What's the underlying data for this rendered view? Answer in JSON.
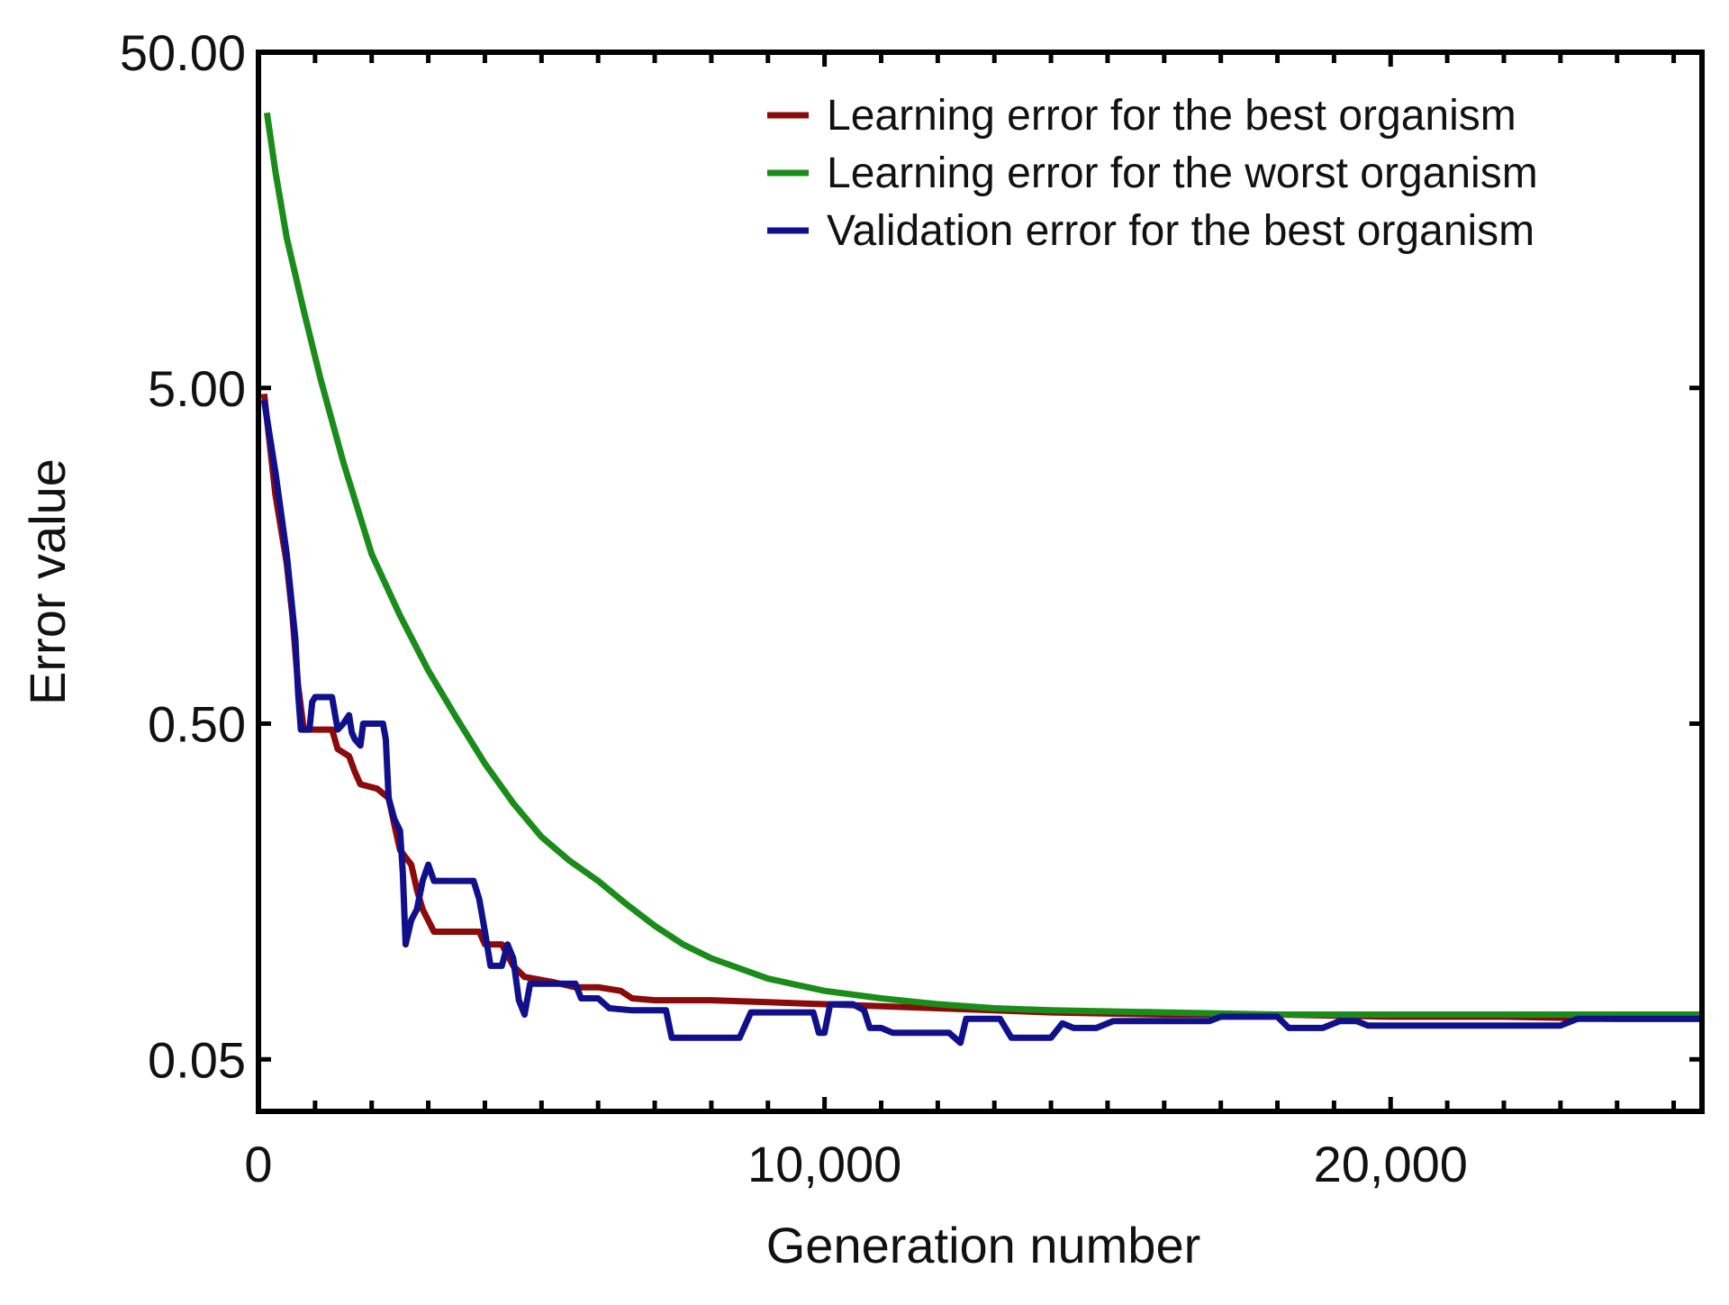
{
  "chart_data": {
    "type": "line",
    "xlabel": "Generation number",
    "ylabel": "Error value",
    "xlim": [
      0,
      25500
    ],
    "ylim": [
      0.035,
      50
    ],
    "y_scale": "log",
    "x_ticks": [
      0,
      10000,
      20000
    ],
    "x_tick_labels": [
      "0",
      "10,000",
      "20,000"
    ],
    "y_ticks": [
      0.05,
      0.5,
      5,
      50
    ],
    "y_tick_labels": [
      "0.05",
      "0.50",
      "5.00",
      "50.00"
    ],
    "grid": false,
    "legend_position": "top-right",
    "series": [
      {
        "name": "Learning error for the best organism",
        "color": "#8b0a0a",
        "points": [
          [
            100,
            4.8
          ],
          [
            300,
            2.4
          ],
          [
            500,
            1.5
          ],
          [
            600,
            1.05
          ],
          [
            700,
            0.65
          ],
          [
            800,
            0.48
          ],
          [
            1100,
            0.48
          ],
          [
            1300,
            0.48
          ],
          [
            1400,
            0.42
          ],
          [
            1600,
            0.4
          ],
          [
            1700,
            0.36
          ],
          [
            1800,
            0.33
          ],
          [
            2100,
            0.32
          ],
          [
            2300,
            0.3
          ],
          [
            2400,
            0.25
          ],
          [
            2500,
            0.21
          ],
          [
            2700,
            0.19
          ],
          [
            2800,
            0.16
          ],
          [
            2900,
            0.14
          ],
          [
            3100,
            0.12
          ],
          [
            3500,
            0.12
          ],
          [
            3900,
            0.12
          ],
          [
            4000,
            0.11
          ],
          [
            4300,
            0.11
          ],
          [
            4500,
            0.095
          ],
          [
            4700,
            0.088
          ],
          [
            5200,
            0.085
          ],
          [
            5600,
            0.082
          ],
          [
            6000,
            0.082
          ],
          [
            6400,
            0.08
          ],
          [
            6600,
            0.076
          ],
          [
            7000,
            0.075
          ],
          [
            8000,
            0.075
          ],
          [
            9000,
            0.074
          ],
          [
            10000,
            0.073
          ],
          [
            12000,
            0.071
          ],
          [
            14000,
            0.069
          ],
          [
            16000,
            0.068
          ],
          [
            18000,
            0.068
          ],
          [
            20000,
            0.067
          ],
          [
            22000,
            0.067
          ],
          [
            24000,
            0.066
          ],
          [
            25500,
            0.066
          ]
        ]
      },
      {
        "name": "Learning error for the worst organism",
        "color": "#1a8c1a",
        "points": [
          [
            150,
            33
          ],
          [
            300,
            22
          ],
          [
            500,
            14
          ],
          [
            800,
            8.5
          ],
          [
            1100,
            5.3
          ],
          [
            1500,
            3.0
          ],
          [
            2000,
            1.6
          ],
          [
            2500,
            1.05
          ],
          [
            3000,
            0.72
          ],
          [
            3500,
            0.52
          ],
          [
            4000,
            0.38
          ],
          [
            4500,
            0.29
          ],
          [
            5000,
            0.23
          ],
          [
            5500,
            0.195
          ],
          [
            6000,
            0.17
          ],
          [
            6500,
            0.145
          ],
          [
            7000,
            0.125
          ],
          [
            7500,
            0.11
          ],
          [
            8000,
            0.1
          ],
          [
            9000,
            0.087
          ],
          [
            10000,
            0.08
          ],
          [
            11000,
            0.076
          ],
          [
            12000,
            0.073
          ],
          [
            13000,
            0.071
          ],
          [
            14000,
            0.07
          ],
          [
            16000,
            0.069
          ],
          [
            18000,
            0.068
          ],
          [
            20000,
            0.068
          ],
          [
            22000,
            0.068
          ],
          [
            24000,
            0.068
          ],
          [
            25500,
            0.068
          ]
        ]
      },
      {
        "name": "Validation error for the best organism",
        "color": "#10108c",
        "points": [
          [
            100,
            4.6
          ],
          [
            300,
            2.8
          ],
          [
            500,
            1.6
          ],
          [
            650,
            0.9
          ],
          [
            700,
            0.62
          ],
          [
            750,
            0.48
          ],
          [
            900,
            0.48
          ],
          [
            950,
            0.58
          ],
          [
            1000,
            0.6
          ],
          [
            1300,
            0.6
          ],
          [
            1400,
            0.48
          ],
          [
            1500,
            0.5
          ],
          [
            1600,
            0.53
          ],
          [
            1650,
            0.47
          ],
          [
            1700,
            0.45
          ],
          [
            1800,
            0.43
          ],
          [
            1850,
            0.5
          ],
          [
            2000,
            0.5
          ],
          [
            2200,
            0.5
          ],
          [
            2250,
            0.45
          ],
          [
            2300,
            0.3
          ],
          [
            2400,
            0.26
          ],
          [
            2500,
            0.24
          ],
          [
            2550,
            0.18
          ],
          [
            2600,
            0.11
          ],
          [
            2700,
            0.13
          ],
          [
            2800,
            0.14
          ],
          [
            2900,
            0.17
          ],
          [
            3000,
            0.19
          ],
          [
            3100,
            0.17
          ],
          [
            3400,
            0.17
          ],
          [
            3800,
            0.17
          ],
          [
            3900,
            0.15
          ],
          [
            4000,
            0.12
          ],
          [
            4100,
            0.095
          ],
          [
            4300,
            0.095
          ],
          [
            4400,
            0.11
          ],
          [
            4500,
            0.1
          ],
          [
            4600,
            0.075
          ],
          [
            4700,
            0.068
          ],
          [
            4800,
            0.084
          ],
          [
            5200,
            0.084
          ],
          [
            5600,
            0.084
          ],
          [
            5700,
            0.076
          ],
          [
            6000,
            0.076
          ],
          [
            6200,
            0.071
          ],
          [
            6600,
            0.07
          ],
          [
            6900,
            0.07
          ],
          [
            7200,
            0.07
          ],
          [
            7300,
            0.058
          ],
          [
            7600,
            0.058
          ],
          [
            8200,
            0.058
          ],
          [
            8500,
            0.058
          ],
          [
            8700,
            0.069
          ],
          [
            9200,
            0.069
          ],
          [
            9800,
            0.069
          ],
          [
            9900,
            0.06
          ],
          [
            10000,
            0.06
          ],
          [
            10100,
            0.073
          ],
          [
            10500,
            0.073
          ],
          [
            10700,
            0.07
          ],
          [
            10800,
            0.062
          ],
          [
            11000,
            0.062
          ],
          [
            11200,
            0.06
          ],
          [
            12200,
            0.06
          ],
          [
            12400,
            0.056
          ],
          [
            12500,
            0.066
          ],
          [
            13100,
            0.066
          ],
          [
            13300,
            0.058
          ],
          [
            13600,
            0.058
          ],
          [
            14000,
            0.058
          ],
          [
            14200,
            0.064
          ],
          [
            14400,
            0.062
          ],
          [
            14800,
            0.062
          ],
          [
            15100,
            0.065
          ],
          [
            16000,
            0.065
          ],
          [
            16800,
            0.065
          ],
          [
            17000,
            0.067
          ],
          [
            18000,
            0.067
          ],
          [
            18200,
            0.062
          ],
          [
            18800,
            0.062
          ],
          [
            19100,
            0.065
          ],
          [
            19400,
            0.065
          ],
          [
            19600,
            0.063
          ],
          [
            21000,
            0.063
          ],
          [
            23000,
            0.063
          ],
          [
            23300,
            0.066
          ],
          [
            24000,
            0.066
          ],
          [
            25500,
            0.066
          ]
        ]
      }
    ]
  }
}
